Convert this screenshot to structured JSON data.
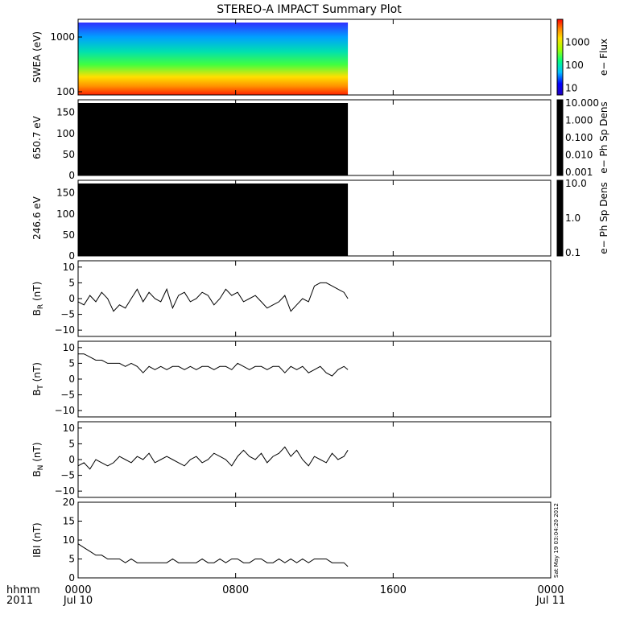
{
  "title": "STEREO-A IMPACT Summary Plot",
  "timestamp_note": "Sat May 19 03:04:20 2012",
  "x_axis": {
    "ticks": [
      {
        "value": 0,
        "line1": "0000",
        "line2": "Jul 10"
      },
      {
        "value": 8,
        "line1": "0800",
        "line2": ""
      },
      {
        "value": 16,
        "line1": "1600",
        "line2": ""
      },
      {
        "value": 24,
        "line1": "0000",
        "line2": "Jul 11"
      }
    ],
    "left_label_line1": "hhmm",
    "left_label_line2": "2011",
    "range_hours": [
      0,
      24
    ],
    "data_end_hour": 13.7
  },
  "colors": {
    "line": "#000000",
    "axes": "#000000",
    "spectrogram_bottom": "#ff2000",
    "spectrogram_top": "#2020ff"
  },
  "chart_data": [
    {
      "type": "heatmap",
      "ylabel": "SWEA (eV)",
      "yscale": "log",
      "ylim": [
        90,
        2000
      ],
      "yticks": [
        "1000",
        "100"
      ],
      "colorbar_label": "e− Flux",
      "colorbar_ticks": [
        "1000",
        "100",
        "10"
      ],
      "colorbar_range": [
        5,
        10000
      ]
    },
    {
      "type": "heatmap",
      "ylabel": "650.7 eV",
      "ylim": [
        0,
        180
      ],
      "yticks": [
        "150",
        "100",
        "50",
        "0"
      ],
      "colorbar_label": "e− Ph Sp Dens",
      "colorbar_ticks": [
        "10.000",
        "1.000",
        "0.100",
        "0.010",
        "0.001"
      ]
    },
    {
      "type": "heatmap",
      "ylabel": "246.6 eV",
      "ylim": [
        0,
        180
      ],
      "yticks": [
        "150",
        "100",
        "50",
        "0"
      ],
      "colorbar_label": "e− Ph Sp Dens",
      "colorbar_ticks": [
        "10.0",
        "1.0",
        "0.1"
      ]
    },
    {
      "type": "line",
      "ylabel_main": "B",
      "ylabel_sub": "R",
      "ylabel_unit": "(nT)",
      "ylim": [
        -12,
        12
      ],
      "yticks": [
        "10",
        "5",
        "0",
        "−5",
        "−10"
      ],
      "x": [
        0,
        0.3,
        0.6,
        0.9,
        1.2,
        1.5,
        1.8,
        2.1,
        2.4,
        2.7,
        3.0,
        3.3,
        3.6,
        3.9,
        4.2,
        4.5,
        4.8,
        5.1,
        5.4,
        5.7,
        6.0,
        6.3,
        6.6,
        6.9,
        7.2,
        7.5,
        7.8,
        8.1,
        8.4,
        8.7,
        9.0,
        9.3,
        9.6,
        9.9,
        10.2,
        10.5,
        10.8,
        11.1,
        11.4,
        11.7,
        12.0,
        12.3,
        12.6,
        12.9,
        13.2,
        13.5,
        13.7
      ],
      "y": [
        -1,
        -2,
        1,
        -1,
        2,
        0,
        -4,
        -2,
        -3,
        0,
        3,
        -1,
        2,
        0,
        -1,
        3,
        -3,
        1,
        2,
        -1,
        0,
        2,
        1,
        -2,
        0,
        3,
        1,
        2,
        -1,
        0,
        1,
        -1,
        -3,
        -2,
        -1,
        1,
        -4,
        -2,
        0,
        -1,
        4,
        5,
        5,
        4,
        3,
        2,
        0
      ]
    },
    {
      "type": "line",
      "ylabel_main": "B",
      "ylabel_sub": "T",
      "ylabel_unit": "(nT)",
      "ylim": [
        -12,
        12
      ],
      "yticks": [
        "10",
        "5",
        "0",
        "−5",
        "−10"
      ],
      "x": [
        0,
        0.3,
        0.6,
        0.9,
        1.2,
        1.5,
        1.8,
        2.1,
        2.4,
        2.7,
        3.0,
        3.3,
        3.6,
        3.9,
        4.2,
        4.5,
        4.8,
        5.1,
        5.4,
        5.7,
        6.0,
        6.3,
        6.6,
        6.9,
        7.2,
        7.5,
        7.8,
        8.1,
        8.4,
        8.7,
        9.0,
        9.3,
        9.6,
        9.9,
        10.2,
        10.5,
        10.8,
        11.1,
        11.4,
        11.7,
        12.0,
        12.3,
        12.6,
        12.9,
        13.2,
        13.5,
        13.7
      ],
      "y": [
        8,
        8,
        7,
        6,
        6,
        5,
        5,
        5,
        4,
        5,
        4,
        2,
        4,
        3,
        4,
        3,
        4,
        4,
        3,
        4,
        3,
        4,
        4,
        3,
        4,
        4,
        3,
        5,
        4,
        3,
        4,
        4,
        3,
        4,
        4,
        2,
        4,
        3,
        4,
        2,
        3,
        4,
        2,
        1,
        3,
        4,
        3
      ]
    },
    {
      "type": "line",
      "ylabel_main": "B",
      "ylabel_sub": "N",
      "ylabel_unit": "(nT)",
      "ylim": [
        -12,
        12
      ],
      "yticks": [
        "10",
        "5",
        "0",
        "−5",
        "−10"
      ],
      "x": [
        0,
        0.3,
        0.6,
        0.9,
        1.2,
        1.5,
        1.8,
        2.1,
        2.4,
        2.7,
        3.0,
        3.3,
        3.6,
        3.9,
        4.2,
        4.5,
        4.8,
        5.1,
        5.4,
        5.7,
        6.0,
        6.3,
        6.6,
        6.9,
        7.2,
        7.5,
        7.8,
        8.1,
        8.4,
        8.7,
        9.0,
        9.3,
        9.6,
        9.9,
        10.2,
        10.5,
        10.8,
        11.1,
        11.4,
        11.7,
        12.0,
        12.3,
        12.6,
        12.9,
        13.2,
        13.5,
        13.7
      ],
      "y": [
        -2,
        -1,
        -3,
        0,
        -1,
        -2,
        -1,
        1,
        0,
        -1,
        1,
        0,
        2,
        -1,
        0,
        1,
        0,
        -1,
        -2,
        0,
        1,
        -1,
        0,
        2,
        1,
        0,
        -2,
        1,
        3,
        1,
        0,
        2,
        -1,
        1,
        2,
        4,
        1,
        3,
        0,
        -2,
        1,
        0,
        -1,
        2,
        0,
        1,
        3
      ]
    },
    {
      "type": "line",
      "ylabel_main": "IBI",
      "ylabel_sub": "",
      "ylabel_unit": "(nT)",
      "ylim": [
        0,
        20
      ],
      "yticks": [
        "20",
        "15",
        "10",
        "5",
        "0"
      ],
      "x": [
        0,
        0.3,
        0.6,
        0.9,
        1.2,
        1.5,
        1.8,
        2.1,
        2.4,
        2.7,
        3.0,
        3.3,
        3.6,
        3.9,
        4.2,
        4.5,
        4.8,
        5.1,
        5.4,
        5.7,
        6.0,
        6.3,
        6.6,
        6.9,
        7.2,
        7.5,
        7.8,
        8.1,
        8.4,
        8.7,
        9.0,
        9.3,
        9.6,
        9.9,
        10.2,
        10.5,
        10.8,
        11.1,
        11.4,
        11.7,
        12.0,
        12.3,
        12.6,
        12.9,
        13.2,
        13.5,
        13.7
      ],
      "y": [
        9,
        8,
        7,
        6,
        6,
        5,
        5,
        5,
        4,
        5,
        4,
        4,
        4,
        4,
        4,
        4,
        5,
        4,
        4,
        4,
        4,
        5,
        4,
        4,
        5,
        4,
        5,
        5,
        4,
        4,
        5,
        5,
        4,
        4,
        5,
        4,
        5,
        4,
        5,
        4,
        5,
        5,
        5,
        4,
        4,
        4,
        3
      ]
    }
  ]
}
